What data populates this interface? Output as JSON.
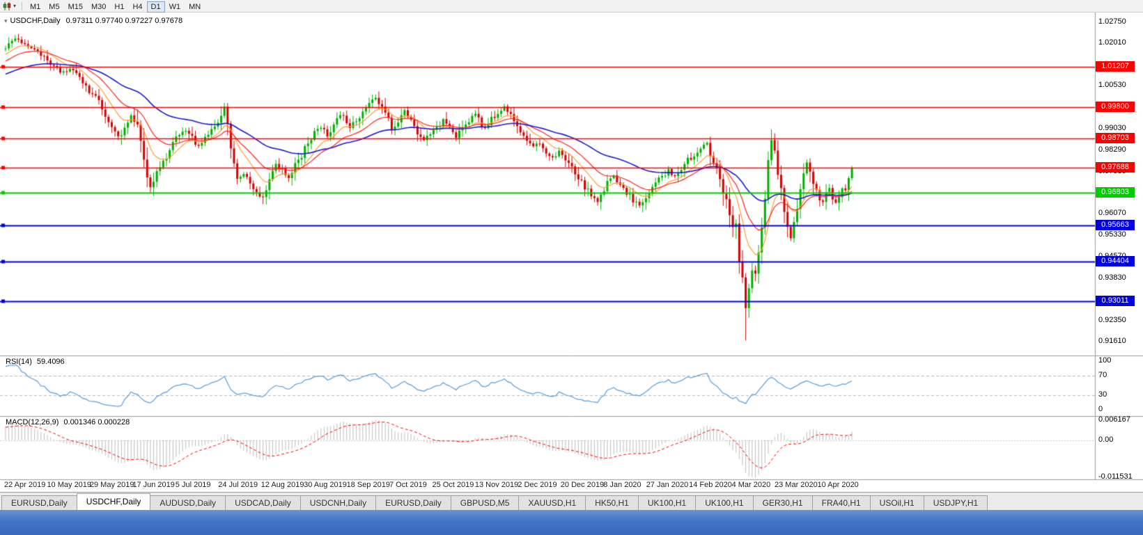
{
  "toolbar": {
    "chart_icon": "candlestick-chart",
    "timeframes": [
      {
        "label": "M1"
      },
      {
        "label": "M5"
      },
      {
        "label": "M15"
      },
      {
        "label": "M30"
      },
      {
        "label": "H1"
      },
      {
        "label": "H4"
      },
      {
        "label": "D1",
        "active": true
      },
      {
        "label": "W1"
      },
      {
        "label": "MN"
      }
    ]
  },
  "chart": {
    "title_symbol": "USDCHF,Daily",
    "ohlc_text": "0.97311 0.97740 0.97227 0.97678"
  },
  "y_axis": {
    "ticks": [
      {
        "label": "1.02750",
        "value": 1.0275
      },
      {
        "label": "1.02010",
        "value": 1.0201
      },
      {
        "label": "1.00530",
        "value": 1.0053
      },
      {
        "label": "0.99030",
        "value": 0.9903
      },
      {
        "label": "0.98290",
        "value": 0.9829
      },
      {
        "label": "0.97530",
        "value": 0.9753
      },
      {
        "label": "0.96070",
        "value": 0.9607
      },
      {
        "label": "0.95330",
        "value": 0.9533
      },
      {
        "label": "0.94570",
        "value": 0.9457
      },
      {
        "label": "0.93830",
        "value": 0.9383
      },
      {
        "label": "0.92350",
        "value": 0.9235
      },
      {
        "label": "0.91610",
        "value": 0.9161
      }
    ]
  },
  "levels": [
    {
      "label": "1.01207",
      "value": 1.01207,
      "color": "#ff0000",
      "type": "resistance"
    },
    {
      "label": "0.99800",
      "value": 0.998,
      "color": "#ff0000",
      "type": "resistance"
    },
    {
      "label": "0.98703",
      "value": 0.98703,
      "color": "#ff0000",
      "type": "resistance"
    },
    {
      "label": "0.97688",
      "value": 0.97688,
      "color": "#ff0000",
      "type": "resistance"
    },
    {
      "label": "0.96803",
      "value": 0.96803,
      "color": "#00cc00",
      "type": "pivot"
    },
    {
      "label": "0.95663",
      "value": 0.95663,
      "color": "#0000e0",
      "type": "support"
    },
    {
      "label": "0.94404",
      "value": 0.94404,
      "color": "#0000e0",
      "type": "support"
    },
    {
      "label": "0.93011",
      "value": 0.93011,
      "color": "#0000e0",
      "type": "support"
    }
  ],
  "x_axis": {
    "dates": [
      "22 Apr 2019",
      "10 May 2019",
      "29 May 2019",
      "17 Jun 2019",
      "5 Jul 2019",
      "24 Jul 2019",
      "12 Aug 2019",
      "30 Aug 2019",
      "18 Sep 2019",
      "7 Oct 2019",
      "25 Oct 2019",
      "13 Nov 2019",
      "2 Dec 2019",
      "20 Dec 2019",
      "8 Jan 2020",
      "27 Jan 2020",
      "14 Feb 2020",
      "4 Mar 2020",
      "23 Mar 2020",
      "10 Apr 2020"
    ]
  },
  "rsi_pane": {
    "label": "RSI(14)",
    "value": "59.4096",
    "ticks": [
      {
        "label": "100",
        "value": 100
      },
      {
        "label": "70",
        "value": 70
      },
      {
        "label": "30",
        "value": 30
      },
      {
        "label": "0",
        "value": 0
      }
    ],
    "dashed_levels": [
      70,
      30
    ],
    "line_color": "#5b9bd5"
  },
  "macd_pane": {
    "label": "MACD(12,26,9)",
    "values": "0.001346 0.000228",
    "ticks": [
      {
        "label": "0.006167",
        "value": 0.006167
      },
      {
        "label": "0.00",
        "value": 0
      },
      {
        "label": "-0.011531",
        "value": -0.011531
      }
    ],
    "histogram_color": "#bdbdbd",
    "signal_color": "#ff0000"
  },
  "tabs": [
    {
      "label": "EURUSD,Daily"
    },
    {
      "label": "USDCHF,Daily",
      "active": true
    },
    {
      "label": "AUDUSD,Daily"
    },
    {
      "label": "USDCAD,Daily"
    },
    {
      "label": "USDCNH,Daily"
    },
    {
      "label": "EURUSD,Daily"
    },
    {
      "label": "GBPUSD,M5"
    },
    {
      "label": "XAUUSD,H1"
    },
    {
      "label": "HK50,H1"
    },
    {
      "label": "UK100,H1"
    },
    {
      "label": "UK100,H1"
    },
    {
      "label": "GER30,H1"
    },
    {
      "label": "FRA40,H1"
    },
    {
      "label": "USOil,H1"
    },
    {
      "label": "USDJPY,H1"
    }
  ],
  "chart_data": {
    "type": "candlestick",
    "symbol": "USDCHF",
    "timeframe": "Daily",
    "num_candles": 264,
    "ylim": [
      0.9125,
      1.0295
    ],
    "up_color": "#00b000",
    "down_color": "#d40000",
    "price_path_anchors": [
      [
        -40,
        1.001
      ],
      [
        -25,
        1.006
      ],
      [
        -12,
        1.0125
      ],
      [
        0,
        1.0185
      ],
      [
        3,
        1.022
      ],
      [
        6,
        1.0195
      ],
      [
        10,
        1.0172
      ],
      [
        14,
        1.013
      ],
      [
        17,
        1.0098
      ],
      [
        20,
        1.0115
      ],
      [
        24,
        1.006
      ],
      [
        27,
        1.0022
      ],
      [
        29,
        1.0005
      ],
      [
        31,
        0.9952
      ],
      [
        33,
        0.9905
      ],
      [
        35,
        0.9872
      ],
      [
        37,
        0.9915
      ],
      [
        39,
        0.9952
      ],
      [
        41,
        0.9905
      ],
      [
        43,
        0.9795
      ],
      [
        45,
        0.9698
      ],
      [
        47,
        0.9752
      ],
      [
        49,
        0.9792
      ],
      [
        52,
        0.985
      ],
      [
        54,
        0.9882
      ],
      [
        56,
        0.9902
      ],
      [
        58,
        0.9868
      ],
      [
        60,
        0.9842
      ],
      [
        62,
        0.9872
      ],
      [
        64,
        0.9895
      ],
      [
        66,
        0.9922
      ],
      [
        68,
        0.9972
      ],
      [
        69,
        0.9905
      ],
      [
        70,
        0.9825
      ],
      [
        72,
        0.9722
      ],
      [
        74,
        0.9748
      ],
      [
        76,
        0.9705
      ],
      [
        78,
        0.9682
      ],
      [
        80,
        0.9662
      ],
      [
        82,
        0.974
      ],
      [
        84,
        0.9786
      ],
      [
        86,
        0.9762
      ],
      [
        88,
        0.9732
      ],
      [
        90,
        0.9772
      ],
      [
        92,
        0.9812
      ],
      [
        94,
        0.9856
      ],
      [
        96,
        0.9886
      ],
      [
        98,
        0.9912
      ],
      [
        100,
        0.9882
      ],
      [
        102,
        0.9922
      ],
      [
        104,
        0.9952
      ],
      [
        106,
        0.9932
      ],
      [
        107,
        0.9906
      ],
      [
        109,
        0.9936
      ],
      [
        111,
        0.9966
      ],
      [
        113,
        0.9992
      ],
      [
        115,
        1.0006
      ],
      [
        117,
        0.9972
      ],
      [
        119,
        0.9932
      ],
      [
        120,
        0.9902
      ],
      [
        122,
        0.9936
      ],
      [
        124,
        0.9966
      ],
      [
        126,
        0.9932
      ],
      [
        128,
        0.9892
      ],
      [
        130,
        0.9862
      ],
      [
        132,
        0.9882
      ],
      [
        134,
        0.9906
      ],
      [
        136,
        0.9932
      ],
      [
        138,
        0.9902
      ],
      [
        140,
        0.9872
      ],
      [
        142,
        0.9902
      ],
      [
        144,
        0.9932
      ],
      [
        146,
        0.9952
      ],
      [
        147,
        0.9936
      ],
      [
        149,
        0.9906
      ],
      [
        151,
        0.9936
      ],
      [
        153,
        0.9962
      ],
      [
        155,
        0.9976
      ],
      [
        157,
        0.9952
      ],
      [
        159,
        0.9922
      ],
      [
        160,
        0.9902
      ],
      [
        162,
        0.9872
      ],
      [
        164,
        0.9842
      ],
      [
        166,
        0.9856
      ],
      [
        168,
        0.9826
      ],
      [
        170,
        0.9802
      ],
      [
        172,
        0.9822
      ],
      [
        174,
        0.9792
      ],
      [
        176,
        0.9762
      ],
      [
        178,
        0.9732
      ],
      [
        180,
        0.9702
      ],
      [
        182,
        0.9672
      ],
      [
        184,
        0.9652
      ],
      [
        186,
        0.9696
      ],
      [
        187,
        0.9716
      ],
      [
        189,
        0.9736
      ],
      [
        191,
        0.9712
      ],
      [
        193,
        0.9682
      ],
      [
        195,
        0.9656
      ],
      [
        197,
        0.9632
      ],
      [
        199,
        0.9662
      ],
      [
        200,
        0.9686
      ],
      [
        202,
        0.9712
      ],
      [
        204,
        0.9736
      ],
      [
        206,
        0.9762
      ],
      [
        208,
        0.9736
      ],
      [
        210,
        0.9762
      ],
      [
        212,
        0.9792
      ],
      [
        214,
        0.9816
      ],
      [
        216,
        0.984
      ],
      [
        218,
        0.9846
      ],
      [
        220,
        0.9796
      ],
      [
        222,
        0.9742
      ],
      [
        224,
        0.9646
      ],
      [
        225,
        0.9612
      ],
      [
        226,
        0.9572
      ],
      [
        227,
        0.956
      ],
      [
        228,
        0.9452
      ],
      [
        229,
        0.9382
      ],
      [
        230,
        0.9272
      ],
      [
        231,
        0.9352
      ],
      [
        232,
        0.9422
      ],
      [
        233,
        0.9402
      ],
      [
        234,
        0.9482
      ],
      [
        235,
        0.9562
      ],
      [
        236,
        0.9652
      ],
      [
        237,
        0.9782
      ],
      [
        238,
        0.9872
      ],
      [
        239,
        0.9822
      ],
      [
        240,
        0.9752
      ],
      [
        241,
        0.9682
      ],
      [
        242,
        0.9622
      ],
      [
        243,
        0.9562
      ],
      [
        244,
        0.9522
      ],
      [
        245,
        0.9582
      ],
      [
        246,
        0.9642
      ],
      [
        247,
        0.9702
      ],
      [
        248,
        0.9752
      ],
      [
        249,
        0.9782
      ],
      [
        250,
        0.9742
      ],
      [
        251,
        0.9702
      ],
      [
        252,
        0.9682
      ],
      [
        253,
        0.9662
      ],
      [
        254,
        0.9652
      ],
      [
        255,
        0.9672
      ],
      [
        256,
        0.9692
      ],
      [
        257,
        0.9666
      ],
      [
        258,
        0.9642
      ],
      [
        259,
        0.9672
      ],
      [
        260,
        0.9702
      ],
      [
        261,
        0.9692
      ],
      [
        262,
        0.9731
      ],
      [
        263,
        0.9768
      ]
    ],
    "extremes": {
      "crash_low_index": 230,
      "crash_low": 0.9165,
      "spike_high_index": 238,
      "spike_high": 0.9901
    },
    "last_candle": {
      "open": 0.97311,
      "high": 0.9774,
      "low": 0.97227,
      "close": 0.97678
    },
    "moving_averages": [
      {
        "type": "ema",
        "period": 10,
        "color": "#ff9d2e"
      },
      {
        "type": "ema",
        "period": 20,
        "color": "#ff2020"
      },
      {
        "type": "ema",
        "period": 50,
        "color": "#1a1acd"
      }
    ],
    "indicators": {
      "rsi": {
        "period": 14,
        "current": 59.4096
      },
      "macd": {
        "fast": 12,
        "slow": 26,
        "signal": 9,
        "current_macd": 0.001346,
        "current_signal": 0.000228
      }
    }
  }
}
